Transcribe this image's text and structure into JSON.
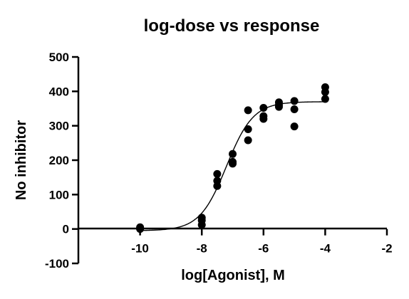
{
  "chart_data": {
    "type": "scatter",
    "title": "log-dose vs response",
    "xlabel": "log[Agonist], M",
    "ylabel": "No inhibitor",
    "xlim": [
      -12,
      -2
    ],
    "ylim": [
      -100,
      500
    ],
    "xticks": [
      -10,
      -8,
      -6,
      -4,
      -2
    ],
    "yticks": [
      -100,
      0,
      100,
      200,
      300,
      400,
      500
    ],
    "xtick_labels": [
      "-10",
      "-8",
      "-6",
      "-4",
      "-2"
    ],
    "ytick_labels": [
      "-100",
      "0",
      "100",
      "200",
      "300",
      "400",
      "500"
    ],
    "grid": false,
    "legend": "none",
    "points": {
      "x": [
        -10,
        -10,
        -10,
        -8,
        -8,
        -8,
        -7.5,
        -7.5,
        -7.5,
        -7,
        -7,
        -7,
        -6.5,
        -6.5,
        -6.5,
        -6,
        -6,
        -6,
        -5.5,
        -5.5,
        -5.5,
        -5,
        -5,
        -5,
        -4,
        -4,
        -4
      ],
      "y": [
        5,
        2,
        0,
        33,
        25,
        12,
        160,
        140,
        125,
        218,
        195,
        190,
        345,
        290,
        258,
        352,
        328,
        320,
        368,
        360,
        355,
        372,
        348,
        298,
        412,
        398,
        378
      ]
    },
    "fit": {
      "model": "sigmoidal dose-response",
      "bottom": -5,
      "top": 370,
      "logEC50": -7.2,
      "hill_slope": 1,
      "x_range": [
        -10,
        -4
      ]
    }
  }
}
